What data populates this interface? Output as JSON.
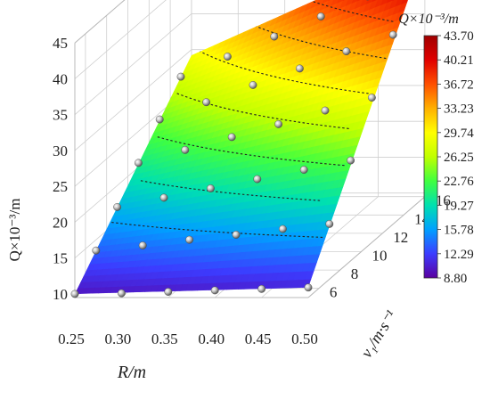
{
  "chart_data": {
    "type": "surface3d",
    "z_label": "Q×10⁻³/m",
    "x_label": "R/m",
    "y_label": "v₁/m·s⁻¹",
    "x_ticks": [
      "0.25",
      "0.30",
      "0.35",
      "0.40",
      "0.45",
      "0.50"
    ],
    "y_ticks": [
      "6",
      "8",
      "10",
      "12",
      "14",
      "16"
    ],
    "z_ticks": [
      "10",
      "15",
      "20",
      "25",
      "30",
      "35",
      "40",
      "45"
    ],
    "xlim": [
      0.25,
      0.5
    ],
    "ylim": [
      5,
      16
    ],
    "zlim": [
      9,
      45
    ],
    "grid": true,
    "colorbar": {
      "title": "Q×10⁻³/m",
      "labels": [
        "43.70",
        "40.21",
        "36.72",
        "33.23",
        "29.74",
        "26.25",
        "22.76",
        "19.27",
        "15.78",
        "12.29",
        "8.80"
      ],
      "min": 8.8,
      "max": 43.7,
      "colors": [
        "#5a00a0",
        "#3c3cff",
        "#00a0ff",
        "#00e0b0",
        "#40ff40",
        "#c0ff00",
        "#ffff00",
        "#ffb000",
        "#ff5000",
        "#e00000",
        "#a00000"
      ]
    },
    "surface": {
      "corners": [
        {
          "R": 0.25,
          "v1": 5,
          "Q": 10.0
        },
        {
          "R": 0.5,
          "v1": 5,
          "Q": 10.9
        },
        {
          "R": 0.5,
          "v1": 16,
          "Q": 43.7
        },
        {
          "R": 0.25,
          "v1": 16,
          "Q": 29.2
        }
      ]
    },
    "points": [
      {
        "R": 0.25,
        "v1": 5,
        "Q": 10.0
      },
      {
        "R": 0.3,
        "v1": 5,
        "Q": 10.1
      },
      {
        "R": 0.35,
        "v1": 5,
        "Q": 10.3
      },
      {
        "R": 0.4,
        "v1": 5,
        "Q": 10.5
      },
      {
        "R": 0.45,
        "v1": 5,
        "Q": 10.7
      },
      {
        "R": 0.5,
        "v1": 5,
        "Q": 10.9
      },
      {
        "R": 0.25,
        "v1": 7,
        "Q": 13.5
      },
      {
        "R": 0.3,
        "v1": 7,
        "Q": 14.2
      },
      {
        "R": 0.35,
        "v1": 7,
        "Q": 15.0
      },
      {
        "R": 0.4,
        "v1": 7,
        "Q": 15.7
      },
      {
        "R": 0.45,
        "v1": 7,
        "Q": 16.5
      },
      {
        "R": 0.5,
        "v1": 7,
        "Q": 17.2
      },
      {
        "R": 0.25,
        "v1": 9,
        "Q": 17.0
      },
      {
        "R": 0.3,
        "v1": 9,
        "Q": 18.3
      },
      {
        "R": 0.35,
        "v1": 9,
        "Q": 19.6
      },
      {
        "R": 0.4,
        "v1": 9,
        "Q": 20.9
      },
      {
        "R": 0.45,
        "v1": 9,
        "Q": 22.2
      },
      {
        "R": 0.5,
        "v1": 9,
        "Q": 23.5
      },
      {
        "R": 0.25,
        "v1": 11,
        "Q": 20.6
      },
      {
        "R": 0.3,
        "v1": 11,
        "Q": 22.4
      },
      {
        "R": 0.35,
        "v1": 11,
        "Q": 24.2
      },
      {
        "R": 0.4,
        "v1": 11,
        "Q": 26.0
      },
      {
        "R": 0.45,
        "v1": 11,
        "Q": 27.9
      },
      {
        "R": 0.5,
        "v1": 11,
        "Q": 29.7
      },
      {
        "R": 0.25,
        "v1": 13,
        "Q": 24.1
      },
      {
        "R": 0.3,
        "v1": 13,
        "Q": 26.5
      },
      {
        "R": 0.35,
        "v1": 13,
        "Q": 28.9
      },
      {
        "R": 0.4,
        "v1": 13,
        "Q": 31.2
      },
      {
        "R": 0.45,
        "v1": 13,
        "Q": 33.6
      },
      {
        "R": 0.5,
        "v1": 13,
        "Q": 35.9
      },
      {
        "R": 0.25,
        "v1": 15,
        "Q": 27.5
      },
      {
        "R": 0.3,
        "v1": 15,
        "Q": 30.3
      },
      {
        "R": 0.35,
        "v1": 15,
        "Q": 33.1
      },
      {
        "R": 0.4,
        "v1": 15,
        "Q": 35.9
      },
      {
        "R": 0.45,
        "v1": 15,
        "Q": 38.7
      },
      {
        "R": 0.5,
        "v1": 15,
        "Q": 41.5
      },
      {
        "R": 0.5,
        "v1": 16,
        "Q": 43.7
      }
    ],
    "contour_levels": [
      15.78,
      19.27,
      22.76,
      26.25,
      29.74,
      33.23,
      36.72,
      40.21
    ]
  }
}
